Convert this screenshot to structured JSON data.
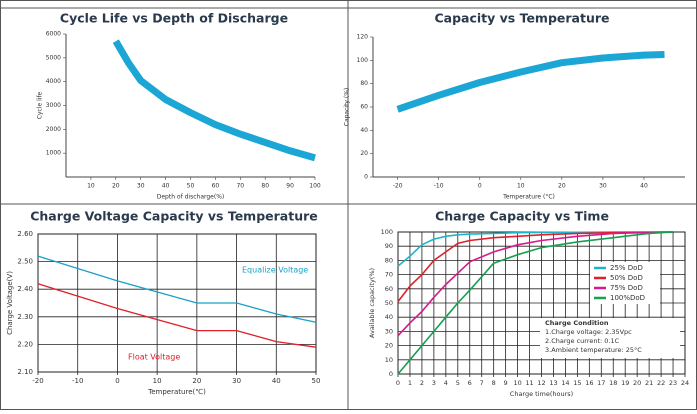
{
  "chart_data": [
    {
      "type": "line",
      "title": "Cycle Life vs Depth of Discharge",
      "x_label": "Depth of discharge(%)",
      "y_label": "Cycle life",
      "x": [
        20,
        25,
        30,
        40,
        50,
        60,
        70,
        80,
        90,
        100
      ],
      "series": [
        {
          "name": "Cycle life",
          "color": "#1ba6d6",
          "values": [
            5700,
            4800,
            4050,
            3250,
            2700,
            2200,
            1800,
            1450,
            1100,
            800
          ]
        }
      ],
      "xlim": [
        0,
        100
      ],
      "xticks": [
        10,
        20,
        30,
        40,
        50,
        60,
        70,
        80,
        90,
        100
      ],
      "ylim": [
        0,
        6000
      ],
      "yticks": [
        1000,
        2000,
        3000,
        4000,
        5000,
        6000
      ],
      "grid": false
    },
    {
      "type": "line",
      "title": "Capacity vs Temperature",
      "x_label": "Temperature (°C)",
      "y_label": "Capacity (%)",
      "x": [
        -20,
        -10,
        0,
        10,
        20,
        30,
        40,
        45
      ],
      "series": [
        {
          "name": "Capacity",
          "color": "#1ba6d6",
          "values": [
            58,
            70,
            81,
            90,
            98,
            102,
            104.5,
            105
          ]
        }
      ],
      "xlim": [
        -26,
        50
      ],
      "xticks": [
        -20,
        -10,
        0,
        10,
        20,
        30,
        40
      ],
      "ylim": [
        0,
        120
      ],
      "yticks": [
        0,
        20,
        40,
        60,
        80,
        100,
        120
      ],
      "grid": false
    },
    {
      "type": "line",
      "title": "Charge Voltage Capacity  vs Temperature",
      "x_label": "Temperature(℃)",
      "y_label": "Charge Voltage(V)",
      "x": [
        -20,
        0,
        20,
        30,
        40,
        50
      ],
      "series": [
        {
          "name": "Equalize  Voltage",
          "color": "#1aa0c8",
          "values": [
            2.52,
            2.43,
            2.35,
            2.35,
            2.31,
            2.28
          ]
        },
        {
          "name": "Float  Voltage",
          "color": "#e0202a",
          "values": [
            2.42,
            2.33,
            2.25,
            2.25,
            2.21,
            2.19
          ]
        }
      ],
      "xlim": [
        -20,
        50
      ],
      "xticks": [
        -20,
        -10,
        0,
        10,
        20,
        30,
        40,
        50
      ],
      "ylim": [
        2.1,
        2.6
      ],
      "yticks": [
        {
          "value": 2.1,
          "label": "2.10"
        },
        {
          "value": 2.2,
          "label": "2.20"
        },
        {
          "value": 2.3,
          "label": "2.30"
        },
        {
          "value": 2.4,
          "label": "2.40"
        },
        {
          "value": 2.5,
          "label": "2.50"
        },
        {
          "value": 2.6,
          "label": "2.60"
        }
      ],
      "grid": true
    },
    {
      "type": "line",
      "title": "Charge  Capacity  vs Time",
      "x_label": "Charge time(hours)",
      "y_label": "Available capacity(%)",
      "x": [
        0,
        1,
        2,
        3,
        4,
        5,
        6,
        8,
        10,
        12,
        15,
        18,
        21,
        23
      ],
      "series": [
        {
          "name": "25%  DoD",
          "color": "#1fb5c8",
          "values": [
            76,
            83,
            91,
            95,
            97,
            98,
            98.5,
            99,
            99.5,
            99.7,
            99.8,
            99.9,
            100,
            100
          ]
        },
        {
          "name": "50%  DoD",
          "color": "#e0202a",
          "values": [
            51,
            62,
            70,
            80,
            86,
            92,
            94,
            96,
            97,
            98,
            99,
            99.5,
            99.8,
            100
          ]
        },
        {
          "name": "75%  DoD",
          "color": "#d6198c",
          "values": [
            27,
            36,
            44,
            54,
            63,
            71,
            79,
            86,
            91,
            94,
            97,
            99,
            99.7,
            100
          ]
        },
        {
          "name": "100%DoD",
          "color": "#16a050",
          "values": [
            0,
            10,
            20,
            30,
            40,
            50,
            59,
            78,
            84,
            89,
            93,
            96,
            99,
            100
          ]
        }
      ],
      "xlim": [
        0,
        24
      ],
      "xticks": [
        0,
        1,
        2,
        3,
        4,
        5,
        6,
        7,
        8,
        9,
        10,
        11,
        12,
        13,
        14,
        15,
        16,
        17,
        18,
        19,
        20,
        21,
        22,
        23,
        24
      ],
      "ylim": [
        0,
        100
      ],
      "yticks": [
        0,
        10,
        20,
        30,
        40,
        50,
        60,
        70,
        80,
        90,
        100
      ],
      "grid": true,
      "legend": "right",
      "annotations": [
        "Charge Condition",
        "1.Charge voltage: 2.35Vpc",
        "2.Charge current: 0.1C",
        "3.Ambient temperature: 25°C"
      ]
    }
  ]
}
